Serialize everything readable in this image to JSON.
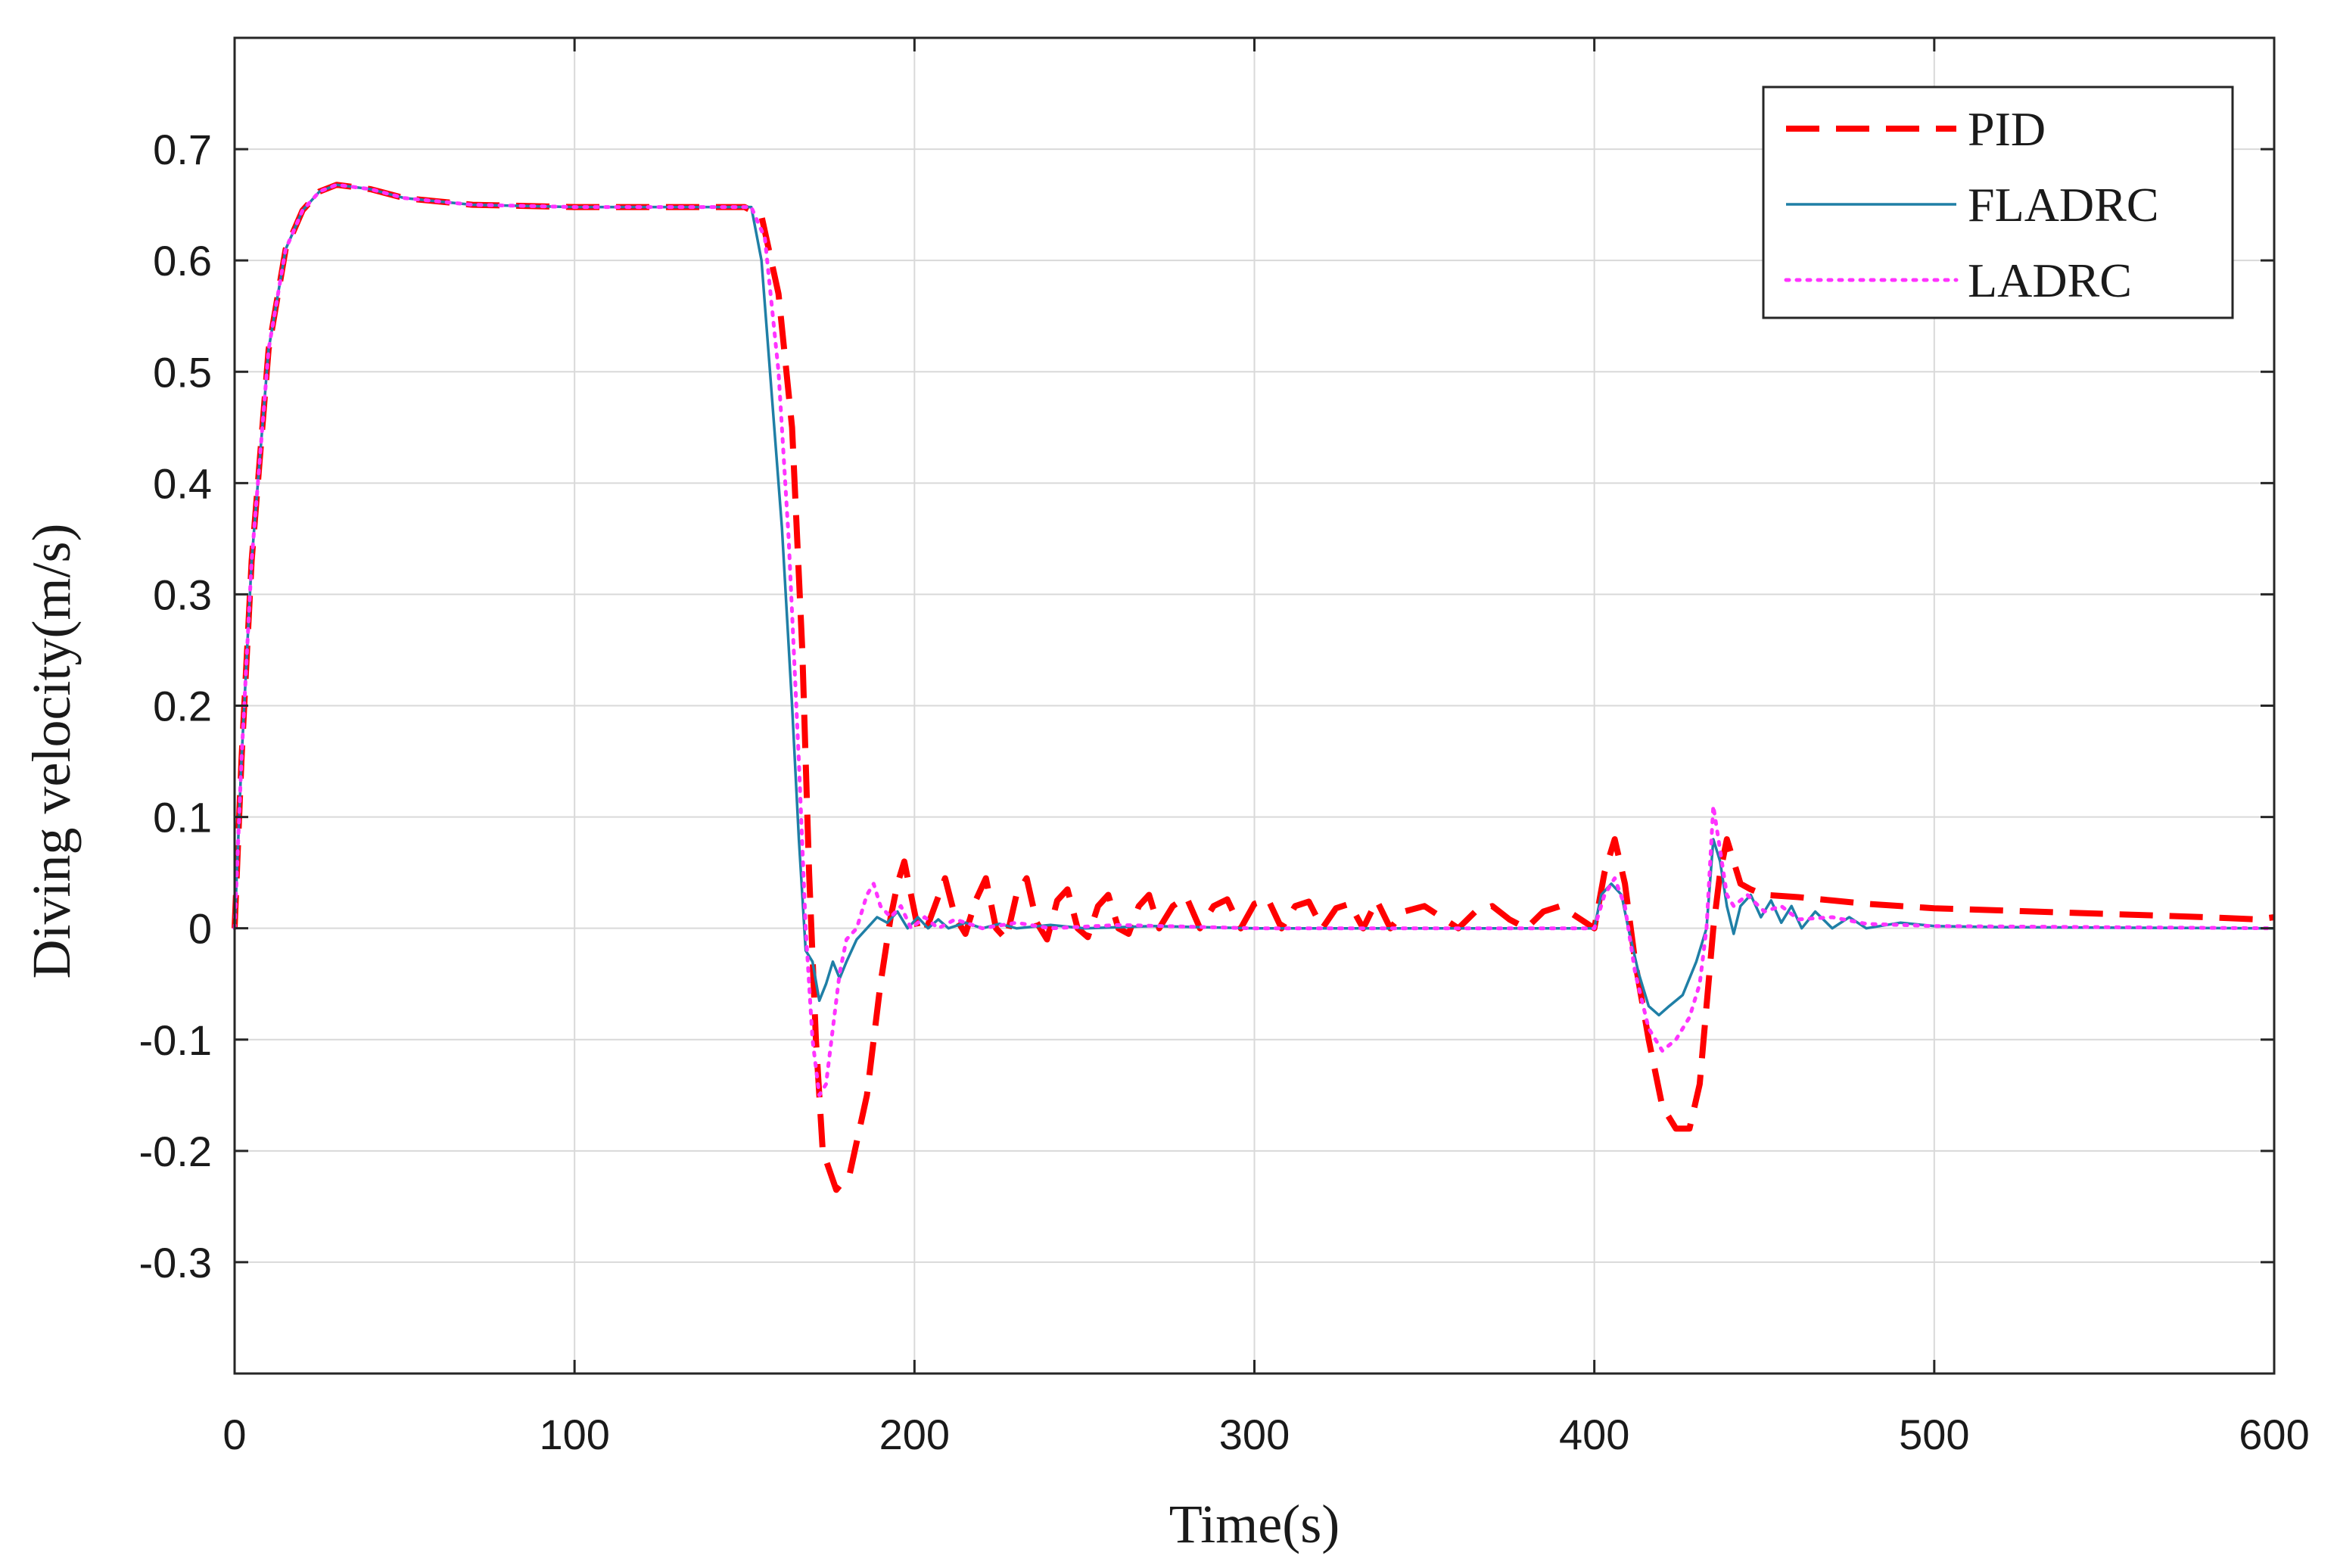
{
  "chart_data": {
    "type": "line",
    "title": "",
    "xlabel": "Time(s)",
    "ylabel": "Diving velocity(m/s)",
    "xlim": [
      0,
      600
    ],
    "ylim": [
      -0.4,
      0.8
    ],
    "xticks": [
      0,
      100,
      200,
      300,
      400,
      500,
      600
    ],
    "yticks": [
      -0.3,
      -0.2,
      -0.1,
      0,
      0.1,
      0.2,
      0.3,
      0.4,
      0.5,
      0.6,
      0.7
    ],
    "xtick_labels": [
      "0",
      "100",
      "200",
      "300",
      "400",
      "500",
      "600"
    ],
    "ytick_labels": [
      "-0.3",
      "-0.2",
      "-0.1",
      "0",
      "0.1",
      "0.2",
      "0.3",
      "0.4",
      "0.5",
      "0.6",
      "0.7"
    ],
    "grid": true,
    "legend_position": "top-right",
    "series": [
      {
        "name": "PID",
        "color": "#ff0000",
        "style": "dashed",
        "points": [
          [
            0,
            0
          ],
          [
            2,
            0.15
          ],
          [
            5,
            0.33
          ],
          [
            10,
            0.52
          ],
          [
            15,
            0.61
          ],
          [
            20,
            0.645
          ],
          [
            25,
            0.662
          ],
          [
            30,
            0.668
          ],
          [
            40,
            0.664
          ],
          [
            50,
            0.656
          ],
          [
            70,
            0.65
          ],
          [
            100,
            0.648
          ],
          [
            150,
            0.648
          ],
          [
            155,
            0.64
          ],
          [
            160,
            0.57
          ],
          [
            164,
            0.45
          ],
          [
            167,
            0.25
          ],
          [
            169,
            0.05
          ],
          [
            171,
            -0.1
          ],
          [
            173,
            -0.2
          ],
          [
            177,
            -0.235
          ],
          [
            181,
            -0.22
          ],
          [
            186,
            -0.15
          ],
          [
            190,
            -0.05
          ],
          [
            193,
            0.01
          ],
          [
            195,
            0.04
          ],
          [
            197,
            0.06
          ],
          [
            199,
            0.03
          ],
          [
            201,
            0.0
          ],
          [
            203,
            -0.005
          ],
          [
            206,
            0.02
          ],
          [
            209,
            0.045
          ],
          [
            212,
            0.01
          ],
          [
            215,
            -0.005
          ],
          [
            218,
            0.025
          ],
          [
            221,
            0.045
          ],
          [
            224,
            0.0
          ],
          [
            227,
            -0.01
          ],
          [
            230,
            0.03
          ],
          [
            233,
            0.045
          ],
          [
            236,
            0.005
          ],
          [
            239,
            -0.01
          ],
          [
            242,
            0.025
          ],
          [
            245,
            0.035
          ],
          [
            248,
            0.0
          ],
          [
            251,
            -0.008
          ],
          [
            254,
            0.02
          ],
          [
            257,
            0.03
          ],
          [
            260,
            0.0
          ],
          [
            263,
            -0.005
          ],
          [
            266,
            0.02
          ],
          [
            269,
            0.03
          ],
          [
            272,
            0.0
          ],
          [
            276,
            0.02
          ],
          [
            280,
            0.028
          ],
          [
            284,
            0.0
          ],
          [
            288,
            0.02
          ],
          [
            292,
            0.026
          ],
          [
            296,
            0.0
          ],
          [
            300,
            0.022
          ],
          [
            304,
            0.026
          ],
          [
            308,
            0.0
          ],
          [
            312,
            0.02
          ],
          [
            316,
            0.024
          ],
          [
            320,
            0.0
          ],
          [
            324,
            0.018
          ],
          [
            328,
            0.022
          ],
          [
            332,
            0.0
          ],
          [
            336,
            0.025
          ],
          [
            340,
            0.0
          ],
          [
            344,
            0.015
          ],
          [
            350,
            0.02
          ],
          [
            355,
            0.01
          ],
          [
            360,
            0.0
          ],
          [
            365,
            0.015
          ],
          [
            370,
            0.02
          ],
          [
            375,
            0.008
          ],
          [
            380,
            0.0
          ],
          [
            385,
            0.015
          ],
          [
            390,
            0.02
          ],
          [
            395,
            0.01
          ],
          [
            400,
            0.0
          ],
          [
            403,
            0.05
          ],
          [
            406,
            0.08
          ],
          [
            409,
            0.04
          ],
          [
            412,
            -0.03
          ],
          [
            416,
            -0.1
          ],
          [
            420,
            -0.16
          ],
          [
            424,
            -0.18
          ],
          [
            428,
            -0.18
          ],
          [
            431,
            -0.14
          ],
          [
            433,
            -0.07
          ],
          [
            435,
            0.0
          ],
          [
            437,
            0.05
          ],
          [
            439,
            0.08
          ],
          [
            441,
            0.06
          ],
          [
            443,
            0.04
          ],
          [
            446,
            0.035
          ],
          [
            450,
            0.03
          ],
          [
            460,
            0.028
          ],
          [
            470,
            0.025
          ],
          [
            480,
            0.022
          ],
          [
            490,
            0.02
          ],
          [
            500,
            0.018
          ],
          [
            520,
            0.016
          ],
          [
            540,
            0.014
          ],
          [
            560,
            0.012
          ],
          [
            580,
            0.01
          ],
          [
            595,
            0.008
          ],
          [
            600,
            0.01
          ]
        ]
      },
      {
        "name": "FLADRC",
        "color": "#1f7fa6",
        "style": "solid",
        "points": [
          [
            0,
            0
          ],
          [
            2,
            0.15
          ],
          [
            5,
            0.33
          ],
          [
            10,
            0.52
          ],
          [
            15,
            0.61
          ],
          [
            20,
            0.645
          ],
          [
            25,
            0.662
          ],
          [
            30,
            0.668
          ],
          [
            40,
            0.664
          ],
          [
            50,
            0.656
          ],
          [
            70,
            0.65
          ],
          [
            100,
            0.648
          ],
          [
            152,
            0.648
          ],
          [
            155,
            0.6
          ],
          [
            158,
            0.48
          ],
          [
            161,
            0.36
          ],
          [
            164,
            0.2
          ],
          [
            166,
            0.08
          ],
          [
            168,
            -0.02
          ],
          [
            170,
            -0.03
          ],
          [
            172,
            -0.065
          ],
          [
            174,
            -0.05
          ],
          [
            176,
            -0.03
          ],
          [
            178,
            -0.045
          ],
          [
            180,
            -0.03
          ],
          [
            183,
            -0.01
          ],
          [
            186,
            0.0
          ],
          [
            189,
            0.01
          ],
          [
            192,
            0.005
          ],
          [
            195,
            0.015
          ],
          [
            198,
            0.0
          ],
          [
            201,
            0.01
          ],
          [
            204,
            0.0
          ],
          [
            207,
            0.008
          ],
          [
            210,
            0.0
          ],
          [
            215,
            0.005
          ],
          [
            220,
            0.0
          ],
          [
            225,
            0.004
          ],
          [
            230,
            0.0
          ],
          [
            240,
            0.003
          ],
          [
            250,
            0.0
          ],
          [
            270,
            0.002
          ],
          [
            300,
            0.0
          ],
          [
            350,
            0.0
          ],
          [
            400,
            0.0
          ],
          [
            402,
            0.03
          ],
          [
            405,
            0.04
          ],
          [
            408,
            0.03
          ],
          [
            410,
            0.0
          ],
          [
            413,
            -0.04
          ],
          [
            416,
            -0.07
          ],
          [
            419,
            -0.078
          ],
          [
            422,
            -0.07
          ],
          [
            426,
            -0.06
          ],
          [
            430,
            -0.03
          ],
          [
            433,
            0.0
          ],
          [
            435,
            0.08
          ],
          [
            437,
            0.06
          ],
          [
            439,
            0.02
          ],
          [
            441,
            -0.005
          ],
          [
            443,
            0.02
          ],
          [
            446,
            0.03
          ],
          [
            449,
            0.01
          ],
          [
            452,
            0.025
          ],
          [
            455,
            0.005
          ],
          [
            458,
            0.02
          ],
          [
            461,
            0.0
          ],
          [
            465,
            0.015
          ],
          [
            470,
            0.0
          ],
          [
            475,
            0.01
          ],
          [
            480,
            0.0
          ],
          [
            490,
            0.005
          ],
          [
            500,
            0.002
          ],
          [
            520,
            0.001
          ],
          [
            600,
            0.0
          ]
        ]
      },
      {
        "name": "LADRC",
        "color": "#ff33ff",
        "style": "dotted",
        "points": [
          [
            0,
            0
          ],
          [
            2,
            0.15
          ],
          [
            5,
            0.33
          ],
          [
            10,
            0.52
          ],
          [
            15,
            0.61
          ],
          [
            20,
            0.645
          ],
          [
            25,
            0.662
          ],
          [
            30,
            0.668
          ],
          [
            40,
            0.664
          ],
          [
            50,
            0.656
          ],
          [
            70,
            0.65
          ],
          [
            100,
            0.648
          ],
          [
            152,
            0.648
          ],
          [
            156,
            0.62
          ],
          [
            160,
            0.5
          ],
          [
            163,
            0.35
          ],
          [
            166,
            0.15
          ],
          [
            168,
            0.0
          ],
          [
            170,
            -0.1
          ],
          [
            172,
            -0.15
          ],
          [
            174,
            -0.14
          ],
          [
            176,
            -0.09
          ],
          [
            178,
            -0.04
          ],
          [
            180,
            -0.01
          ],
          [
            183,
            0.0
          ],
          [
            186,
            0.03
          ],
          [
            188,
            0.04
          ],
          [
            190,
            0.02
          ],
          [
            193,
            0.01
          ],
          [
            196,
            0.02
          ],
          [
            199,
            0.0
          ],
          [
            203,
            0.01
          ],
          [
            207,
            0.0
          ],
          [
            212,
            0.008
          ],
          [
            220,
            0.0
          ],
          [
            230,
            0.005
          ],
          [
            240,
            0.0
          ],
          [
            260,
            0.003
          ],
          [
            300,
            0.0
          ],
          [
            350,
            0.0
          ],
          [
            400,
            0.0
          ],
          [
            403,
            0.03
          ],
          [
            406,
            0.045
          ],
          [
            409,
            0.02
          ],
          [
            412,
            -0.04
          ],
          [
            416,
            -0.09
          ],
          [
            420,
            -0.11
          ],
          [
            424,
            -0.1
          ],
          [
            428,
            -0.08
          ],
          [
            431,
            -0.05
          ],
          [
            433,
            0.0
          ],
          [
            435,
            0.11
          ],
          [
            437,
            0.07
          ],
          [
            439,
            0.03
          ],
          [
            441,
            0.02
          ],
          [
            445,
            0.03
          ],
          [
            450,
            0.015
          ],
          [
            455,
            0.02
          ],
          [
            460,
            0.008
          ],
          [
            470,
            0.01
          ],
          [
            480,
            0.004
          ],
          [
            500,
            0.002
          ],
          [
            600,
            0.0
          ]
        ]
      }
    ]
  }
}
